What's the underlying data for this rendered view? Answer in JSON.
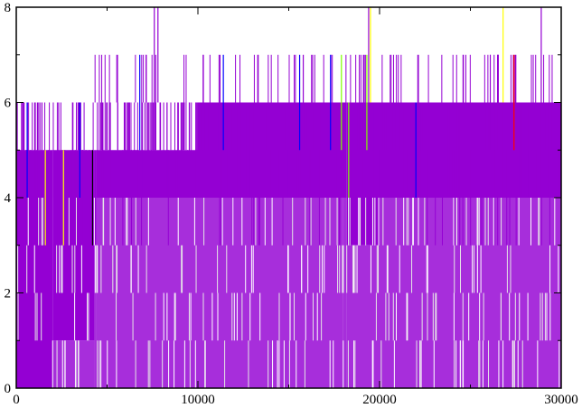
{
  "chart_data": {
    "type": "line",
    "title": "",
    "xlabel": "",
    "ylabel": "",
    "xlim": [
      0,
      30000
    ],
    "ylim": [
      0,
      8
    ],
    "x_ticks": [
      0,
      10000,
      20000,
      30000
    ],
    "x_tick_labels": [
      "0",
      "10000",
      "20000",
      "30000"
    ],
    "y_ticks": [
      0,
      2,
      4,
      6,
      8
    ],
    "y_tick_labels": [
      "0",
      "2",
      "4",
      "6",
      "8"
    ],
    "grid": false,
    "legend": "none",
    "series": [
      {
        "color": "#9400d3",
        "x": [
          0,
          2000,
          4300,
          4400,
          10000,
          18000,
          18200,
          20000,
          30000
        ],
        "y_low": [
          0,
          1,
          3,
          4,
          4,
          4,
          3,
          4,
          4
        ],
        "y_high": [
          5,
          5,
          5,
          5,
          6,
          6,
          6,
          6,
          6
        ],
        "spikes_x": [
          7600,
          7800,
          15800,
          19400,
          26500,
          27500,
          28900
        ],
        "spikes_y": [
          8,
          8,
          7,
          8,
          7,
          7,
          8
        ]
      },
      {
        "color": "#0000ff",
        "x": [
          600,
          3500,
          6800,
          11400,
          15600,
          17300,
          22000
        ],
        "y": [
          6,
          6,
          7,
          7,
          7,
          7,
          6
        ]
      },
      {
        "color": "#000000",
        "x": [
          0,
          4200
        ],
        "y": [
          5,
          5
        ]
      },
      {
        "color": "#ffff00",
        "x": [
          1600,
          2600,
          19500,
          26800
        ],
        "y": [
          5,
          5,
          8,
          8
        ]
      },
      {
        "color": "#7fff00",
        "x": [
          17900,
          18300,
          19300
        ],
        "y": [
          7,
          6,
          7
        ]
      },
      {
        "color": "#ff0000",
        "x": [
          27400
        ],
        "y": [
          7
        ]
      }
    ]
  }
}
